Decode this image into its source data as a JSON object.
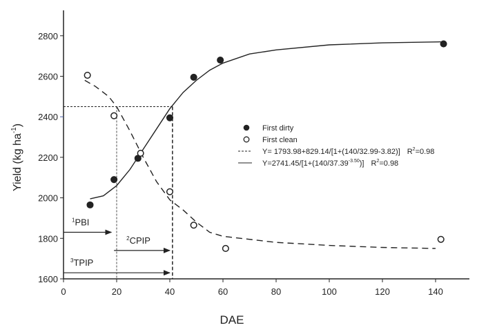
{
  "chart_data": {
    "type": "scatter",
    "title": "",
    "xlabel": "DAE",
    "ylabel": "Yield (kg ha",
    "ylabel_sup": "-1",
    "ylabel_close": ")",
    "xlim": [
      0,
      153
    ],
    "ylim": [
      1600,
      2925
    ],
    "xticks": [
      0,
      20,
      40,
      60,
      80,
      100,
      120,
      140
    ],
    "yticks": [
      1600,
      1800,
      2000,
      2200,
      2400,
      2600,
      2800
    ],
    "grid": false,
    "legend_position": "center-right",
    "series": [
      {
        "name": "First dirty",
        "marker": "filled-circle",
        "x": [
          10,
          19,
          28,
          40,
          49,
          59,
          143
        ],
        "y": [
          1965,
          2090,
          2195,
          2395,
          2595,
          2680,
          2760
        ]
      },
      {
        "name": "First clean",
        "marker": "open-circle",
        "x": [
          9,
          19,
          29,
          40,
          49,
          61,
          142
        ],
        "y": [
          2605,
          2405,
          2220,
          2030,
          1865,
          1750,
          1795
        ]
      }
    ],
    "fits": [
      {
        "style": "dashed",
        "eq": "Y= 1793.98+829.14/[1+(140/32.99-3.82)]",
        "r2_prefix": "R",
        "r2_sup": "2",
        "r2_value": "=0.98",
        "x": [
          8,
          12,
          17,
          20,
          25,
          30,
          35,
          40,
          45,
          50,
          55,
          60,
          80,
          100,
          120,
          140
        ],
        "y": [
          2580,
          2550,
          2500,
          2450,
          2330,
          2200,
          2080,
          1990,
          1940,
          1880,
          1830,
          1810,
          1780,
          1765,
          1755,
          1750
        ]
      },
      {
        "style": "solid",
        "eq": "Y=2741.45/[1+(140/37.39",
        "eq_sup": "-3.50",
        "eq_end": ")]",
        "r2_prefix": "R",
        "r2_sup": "2",
        "r2_value": "=0.98",
        "x": [
          10,
          15,
          20,
          25,
          30,
          35,
          40,
          45,
          50,
          55,
          60,
          70,
          80,
          100,
          120,
          142
        ],
        "y": [
          1995,
          2010,
          2060,
          2140,
          2240,
          2340,
          2440,
          2520,
          2580,
          2630,
          2665,
          2710,
          2730,
          2755,
          2765,
          2770
        ]
      }
    ],
    "reference_lines": {
      "horizontal": {
        "y": 2450,
        "x": [
          0,
          41
        ]
      },
      "vertical": [
        {
          "x": 20,
          "y": [
            1600,
            2450
          ]
        },
        {
          "x": 41,
          "y": [
            1600,
            2450
          ]
        }
      ]
    },
    "annotations": [
      {
        "sup": "1",
        "label": "PBI",
        "y": 1830,
        "x": [
          0,
          18
        ]
      },
      {
        "sup": "2",
        "label": "CPIP",
        "y": 1740,
        "x": [
          19,
          40
        ]
      },
      {
        "sup": "3",
        "label": "TPIP",
        "y": 1630,
        "x": [
          0,
          40
        ]
      }
    ]
  }
}
